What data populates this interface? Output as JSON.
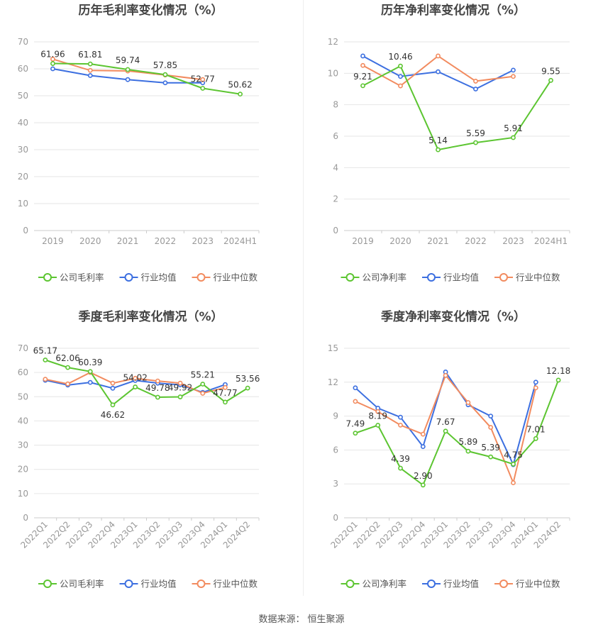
{
  "source": {
    "label": "数据来源：",
    "value": "恒生聚源"
  },
  "colors": {
    "company": "#5CC531",
    "avg": "#3C6FE0",
    "median": "#F28B5F",
    "grid": "#e6e6e6",
    "axis": "#999999",
    "title": "#444444"
  },
  "chart_data": [
    {
      "id": "annual-gross",
      "type": "line",
      "title": "历年毛利率变化情况（%）",
      "categories": [
        "2019",
        "2020",
        "2021",
        "2022",
        "2023",
        "2024H1"
      ],
      "ylim": [
        0,
        70
      ],
      "yticks": [
        0,
        10,
        20,
        30,
        40,
        50,
        60,
        70
      ],
      "grid": true,
      "legend_position": "bottom",
      "rotate_x": false,
      "series": [
        {
          "name": "公司毛利率",
          "color": "#5CC531",
          "labels": true,
          "values": [
            61.96,
            61.81,
            59.74,
            57.85,
            52.77,
            50.62
          ],
          "label_text": [
            "61.96",
            "61.81",
            "59.74",
            "57.85",
            "52.77",
            "50.62"
          ]
        },
        {
          "name": "行业均值",
          "color": "#3C6FE0",
          "labels": false,
          "values": [
            60.0,
            57.5,
            56.0,
            54.8,
            54.8,
            null
          ]
        },
        {
          "name": "行业中位数",
          "color": "#F28B5F",
          "labels": false,
          "values": [
            63.6,
            59.4,
            59.2,
            57.7,
            56.0,
            null
          ]
        }
      ]
    },
    {
      "id": "annual-net",
      "type": "line",
      "title": "历年净利率变化情况（%）",
      "categories": [
        "2019",
        "2020",
        "2021",
        "2022",
        "2023",
        "2024H1"
      ],
      "ylim": [
        0,
        12
      ],
      "yticks": [
        0,
        2,
        4,
        6,
        8,
        10,
        12
      ],
      "grid": true,
      "legend_position": "bottom",
      "rotate_x": false,
      "series": [
        {
          "name": "公司净利率",
          "color": "#5CC531",
          "labels": true,
          "values": [
            9.21,
            10.46,
            5.14,
            5.59,
            5.91,
            9.55
          ],
          "label_text": [
            "9.21",
            "10.46",
            "5.14",
            "5.59",
            "5.91",
            "9.55"
          ]
        },
        {
          "name": "行业均值",
          "color": "#3C6FE0",
          "labels": false,
          "values": [
            11.1,
            9.8,
            10.1,
            9.0,
            10.2,
            null
          ]
        },
        {
          "name": "行业中位数",
          "color": "#F28B5F",
          "labels": false,
          "values": [
            10.5,
            9.2,
            11.1,
            9.5,
            9.8,
            null
          ]
        }
      ]
    },
    {
      "id": "quarterly-gross",
      "type": "line",
      "title": "季度毛利率变化情况（%）",
      "categories": [
        "2022Q1",
        "2022Q2",
        "2022Q3",
        "2022Q4",
        "2023Q1",
        "2023Q2",
        "2023Q3",
        "2023Q4",
        "2024Q1",
        "2024Q2"
      ],
      "ylim": [
        0,
        70
      ],
      "yticks": [
        0,
        10,
        20,
        30,
        40,
        50,
        60,
        70
      ],
      "grid": true,
      "legend_position": "bottom",
      "rotate_x": true,
      "series": [
        {
          "name": "公司毛利率",
          "color": "#5CC531",
          "labels": true,
          "values": [
            65.17,
            62.06,
            60.39,
            46.62,
            54.02,
            49.78,
            49.92,
            55.21,
            47.77,
            53.56
          ],
          "label_text": [
            "65.17",
            "62.06",
            "60.39",
            "46.62",
            "54.02",
            "49.78",
            "49.92",
            "55.21",
            "47.77",
            "53.56"
          ]
        },
        {
          "name": "行业均值",
          "color": "#3C6FE0",
          "labels": false,
          "values": [
            56.8,
            54.8,
            55.9,
            53.5,
            56.7,
            55.6,
            54.9,
            51.8,
            55.0,
            null
          ]
        },
        {
          "name": "行业中位数",
          "color": "#F28B5F",
          "labels": false,
          "values": [
            57.2,
            55.3,
            60.0,
            55.6,
            57.6,
            56.5,
            55.6,
            51.4,
            53.8,
            null
          ]
        }
      ]
    },
    {
      "id": "quarterly-net",
      "type": "line",
      "title": "季度净利率变化情况（%）",
      "categories": [
        "2022Q1",
        "2022Q2",
        "2022Q3",
        "2022Q4",
        "2023Q1",
        "2023Q2",
        "2023Q3",
        "2023Q4",
        "2024Q1",
        "2024Q2"
      ],
      "ylim": [
        0,
        15
      ],
      "yticks": [
        0,
        3,
        6,
        9,
        12,
        15
      ],
      "grid": true,
      "legend_position": "bottom",
      "rotate_x": true,
      "series": [
        {
          "name": "公司净利率",
          "color": "#5CC531",
          "labels": true,
          "values": [
            7.49,
            8.19,
            4.39,
            2.9,
            7.67,
            5.89,
            5.39,
            4.75,
            7.01,
            12.18
          ],
          "label_text": [
            "7.49",
            "8.19",
            "4.39",
            "2.90",
            "7.67",
            "5.89",
            "5.39",
            "4.75",
            "7.01",
            "12.18"
          ]
        },
        {
          "name": "行业均值",
          "color": "#3C6FE0",
          "labels": false,
          "values": [
            11.5,
            9.7,
            8.9,
            6.3,
            12.9,
            10.0,
            9.0,
            4.7,
            12.0,
            null
          ]
        },
        {
          "name": "行业中位数",
          "color": "#F28B5F",
          "labels": false,
          "values": [
            10.3,
            9.4,
            8.2,
            7.4,
            12.6,
            10.2,
            8.0,
            3.1,
            11.5,
            null
          ]
        }
      ]
    }
  ]
}
